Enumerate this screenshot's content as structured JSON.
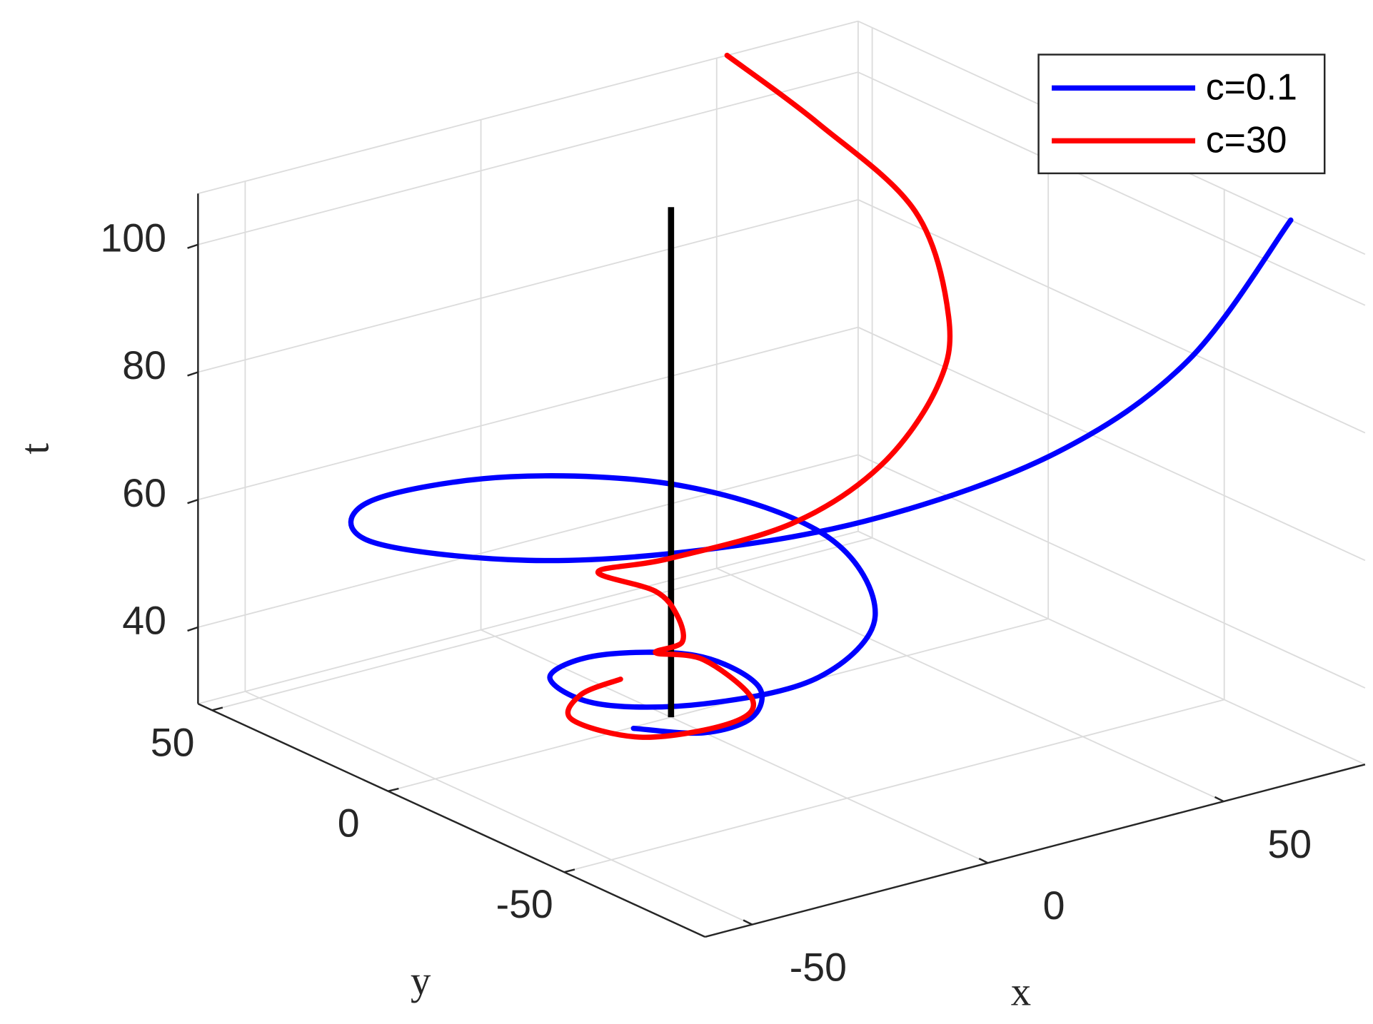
{
  "chart_data": {
    "type": "line3d",
    "xlabel": "x",
    "ylabel": "y",
    "zlabel": "t",
    "xlim": [
      -60,
      80
    ],
    "ylim": [
      -90,
      54
    ],
    "zlim": [
      28,
      108
    ],
    "xticks": [
      -50,
      0,
      50
    ],
    "yticks": [
      -50,
      0,
      50
    ],
    "zticks": [
      40,
      60,
      80,
      100
    ],
    "grid": true,
    "legend": "northeast",
    "series": [
      {
        "name": "c=0.1",
        "color": "#0000ff",
        "x": [
          -10.2,
          -3.9,
          5.5,
          13.8,
          12.1,
          -2.9,
          -17.8,
          -20.9,
          -8.5,
          11.0,
          31.2,
          42.4,
          32.4,
          5.9,
          -24.2,
          -39.6,
          -27.6,
          -4.4,
          23.3,
          51.0,
          67.9,
          80
        ],
        "y": [
          -3.0,
          -14.5,
          -15.8,
          -5.9,
          9.3,
          16.8,
          10.6,
          -7.3,
          -20.7,
          -27.1,
          -16.2,
          12.4,
          39.1,
          53.5,
          53.2,
          32.6,
          3.7,
          -15.3,
          -28.1,
          -41.0,
          -55.9,
          -68.9
        ],
        "t": [
          29,
          30,
          31,
          32,
          33,
          34,
          35,
          36,
          37,
          39,
          42,
          45,
          48,
          51,
          53,
          55,
          57,
          59,
          62,
          70,
          85,
          108
        ]
      },
      {
        "name": "c=30",
        "color": "#ff0000",
        "x": [
          2.5,
          -9.4,
          -19.7,
          -17.2,
          -3.1,
          5.0,
          8.2,
          1.9,
          4.8,
          8.2,
          8.7,
          2.9,
          10.7,
          28.3,
          45.8,
          61.8,
          69.1,
          73.1,
          63.3,
          52.2
        ],
        "y": [
          17.7,
          13.1,
          1.7,
          -15.0,
          -21.0,
          -16.4,
          1.7,
          6.9,
          3.3,
          9.2,
          16.1,
          24.6,
          15.0,
          3.6,
          2.0,
          7.2,
          13.7,
          28.6,
          43.0,
          54
        ],
        "t": [
          29,
          30,
          31,
          32,
          33,
          34,
          35,
          36,
          38,
          40,
          42,
          44,
          47,
          52,
          58,
          66,
          74,
          86,
          98,
          108
        ]
      }
    ],
    "reference_line": {
      "color": "#000000",
      "x": [
        0,
        0
      ],
      "y": [
        0,
        0
      ],
      "t": [
        28,
        108
      ]
    }
  }
}
